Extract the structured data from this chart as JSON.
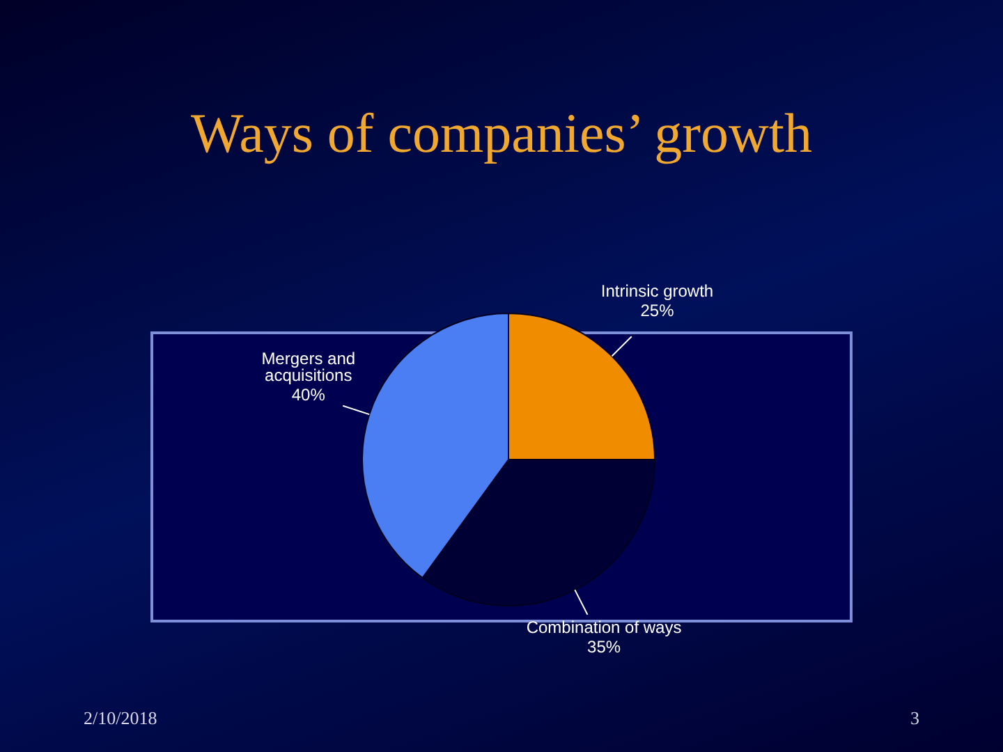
{
  "chart_data": {
    "type": "pie",
    "title": "Ways of companies’ growth",
    "categories": [
      "Intrinsic growth",
      "Combination of ways",
      "Mergers and acquisitions"
    ],
    "values": [
      25,
      35,
      40
    ],
    "colors": [
      "#f08c00",
      "#000035",
      "#4a7ef2"
    ],
    "value_labels": [
      "25%",
      "35%",
      "40%"
    ],
    "annotations": [
      "2/10/2018",
      "3"
    ]
  }
}
